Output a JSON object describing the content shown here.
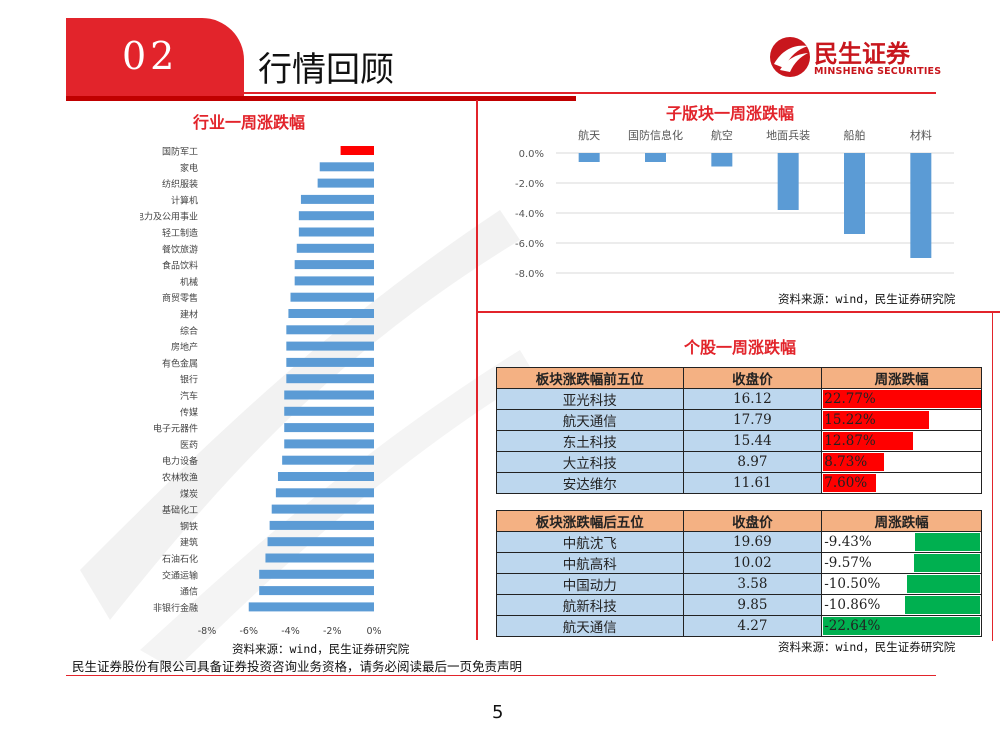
{
  "header": {
    "section_number": "02",
    "section_title": "行情回顾",
    "logo_cn": "民生证券",
    "logo_en": "MINSHENG SECURITIES"
  },
  "colors": {
    "accent": "#e2242b",
    "bar_blue": "#5b9bd5",
    "positive": "#ff0000",
    "negative": "#00b050"
  },
  "left_chart": {
    "title": "行业一周涨跌幅",
    "source": "资料来源：wind，民生证券研究院"
  },
  "top_right_chart": {
    "title": "子版块一周涨跌幅",
    "source": "资料来源：wind，民生证券研究院"
  },
  "stock_section": {
    "title": "个股一周涨跌幅",
    "source": "资料来源：wind，民生证券研究院",
    "top_table": {
      "headers": [
        "板块涨跌幅前五位",
        "收盘价",
        "周涨跌幅"
      ],
      "rows": [
        {
          "name": "亚光科技",
          "price": "16.12",
          "change": "22.77%",
          "value": 22.77
        },
        {
          "name": "航天通信",
          "price": "17.79",
          "change": "15.22%",
          "value": 15.22
        },
        {
          "name": "东土科技",
          "price": "15.44",
          "change": "12.87%",
          "value": 12.87
        },
        {
          "name": "大立科技",
          "price": "8.97",
          "change": "8.73%",
          "value": 8.73
        },
        {
          "name": "安达维尔",
          "price": "11.61",
          "change": "7.60%",
          "value": 7.6
        }
      ]
    },
    "bottom_table": {
      "headers": [
        "板块涨跌幅后五位",
        "收盘价",
        "周涨跌幅"
      ],
      "rows": [
        {
          "name": "中航沈飞",
          "price": "19.69",
          "change": "-9.43%",
          "value": -9.43
        },
        {
          "name": "中航高科",
          "price": "10.02",
          "change": "-9.57%",
          "value": -9.57
        },
        {
          "name": "中国动力",
          "price": "3.58",
          "change": "-10.50%",
          "value": -10.5
        },
        {
          "name": "航新科技",
          "price": "9.85",
          "change": "-10.86%",
          "value": -10.86
        },
        {
          "name": "航天通信",
          "price": "4.27",
          "change": "-22.64%",
          "value": -22.64
        }
      ]
    }
  },
  "footer": {
    "disclaimer": "民生证券股份有限公司具备证券投资咨询业务资格，请务必阅读最后一页免责声明",
    "page_number": "5"
  },
  "chart_data": [
    {
      "type": "bar",
      "orientation": "horizontal",
      "title": "行业一周涨跌幅",
      "categories": [
        "国防军工",
        "家电",
        "纺织服装",
        "计算机",
        "电力及公用事业",
        "轻工制造",
        "餐饮旅游",
        "食品饮料",
        "机械",
        "商贸零售",
        "建材",
        "综合",
        "房地产",
        "有色金属",
        "银行",
        "汽车",
        "传媒",
        "电子元器件",
        "医药",
        "电力设备",
        "农林牧渔",
        "煤炭",
        "基础化工",
        "钢铁",
        "建筑",
        "石油石化",
        "交通运输",
        "通信",
        "非银行金融"
      ],
      "values": [
        -1.6,
        -2.6,
        -2.7,
        -3.5,
        -3.6,
        -3.6,
        -3.7,
        -3.8,
        -3.8,
        -4.0,
        -4.1,
        -4.2,
        -4.2,
        -4.2,
        -4.2,
        -4.3,
        -4.3,
        -4.3,
        -4.3,
        -4.4,
        -4.6,
        -4.7,
        -4.9,
        -5.0,
        -5.1,
        -5.2,
        -5.5,
        -5.5,
        -6.0
      ],
      "highlight_index": 0,
      "xlim": [
        -8,
        0
      ],
      "xticks": [
        "-8%",
        "-6%",
        "-4%",
        "-2%",
        "0%"
      ],
      "grid": false
    },
    {
      "type": "bar",
      "title": "子版块一周涨跌幅",
      "categories": [
        "航天",
        "国防信息化",
        "航空",
        "地面兵装",
        "船舶",
        "材料"
      ],
      "values": [
        -0.6,
        -0.6,
        -0.9,
        -3.8,
        -5.4,
        -7.0
      ],
      "ylim": [
        -8,
        0
      ],
      "yticks": [
        "0.0%",
        "-2.0%",
        "-4.0%",
        "-6.0%",
        "-8.0%"
      ],
      "grid": true
    }
  ]
}
